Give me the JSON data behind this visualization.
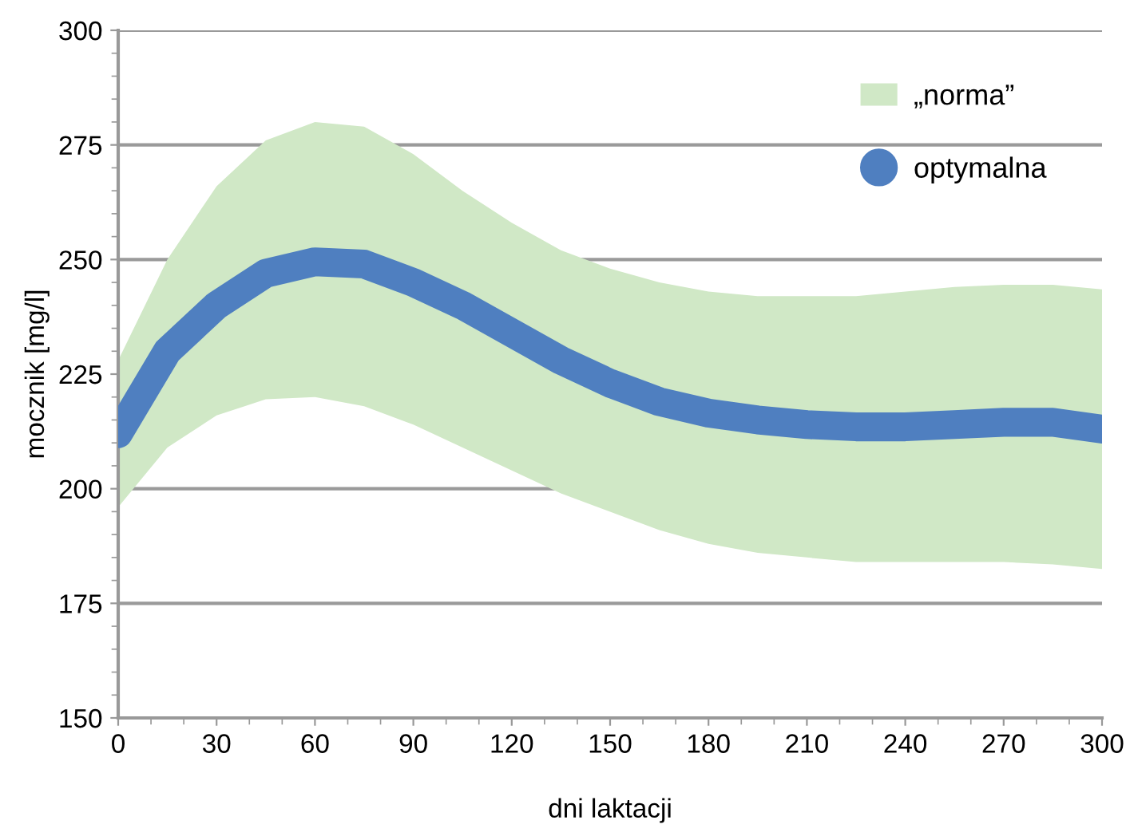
{
  "chart_data": {
    "type": "line",
    "xlabel": "dni laktacji",
    "ylabel": "mocznik [mg/l]",
    "x": [
      0,
      15,
      30,
      45,
      60,
      75,
      90,
      105,
      120,
      135,
      150,
      165,
      180,
      195,
      210,
      225,
      240,
      255,
      270,
      285,
      300
    ],
    "series": [
      {
        "name": "„norma”",
        "type": "line",
        "color": "#d0e8c6",
        "values": [
          null,
          null,
          null,
          null,
          null,
          null,
          null,
          null,
          null,
          null,
          null,
          null,
          null,
          null,
          null,
          null,
          null,
          null,
          null,
          null,
          null
        ],
        "upper": [
          228,
          250,
          266,
          276,
          280,
          279,
          273,
          265,
          258,
          252,
          248,
          245,
          243,
          242,
          242,
          242,
          243,
          244,
          244.5,
          244.5,
          243.5
        ],
        "lower": [
          196,
          209,
          216,
          219.5,
          220,
          218,
          214,
          209,
          204,
          199,
          195,
          191,
          188,
          186,
          185,
          184,
          184,
          184,
          184,
          183.5,
          182.5
        ]
      },
      {
        "name": "optymalna",
        "type": "line",
        "color": "#4f7fc0",
        "values": [
          212,
          230,
          240,
          247,
          249.5,
          249,
          245,
          240,
          234,
          228,
          223,
          219,
          216.5,
          215,
          214,
          213.5,
          213.5,
          214,
          214.5,
          214.5,
          213
        ]
      }
    ],
    "xlim": [
      0,
      300
    ],
    "xticks": [
      0,
      30,
      60,
      90,
      120,
      150,
      180,
      210,
      240,
      270,
      300
    ],
    "ylim": [
      150,
      300
    ],
    "yticks": [
      150,
      175,
      200,
      225,
      250,
      275,
      300
    ],
    "grid": "y",
    "legend": "top right"
  }
}
